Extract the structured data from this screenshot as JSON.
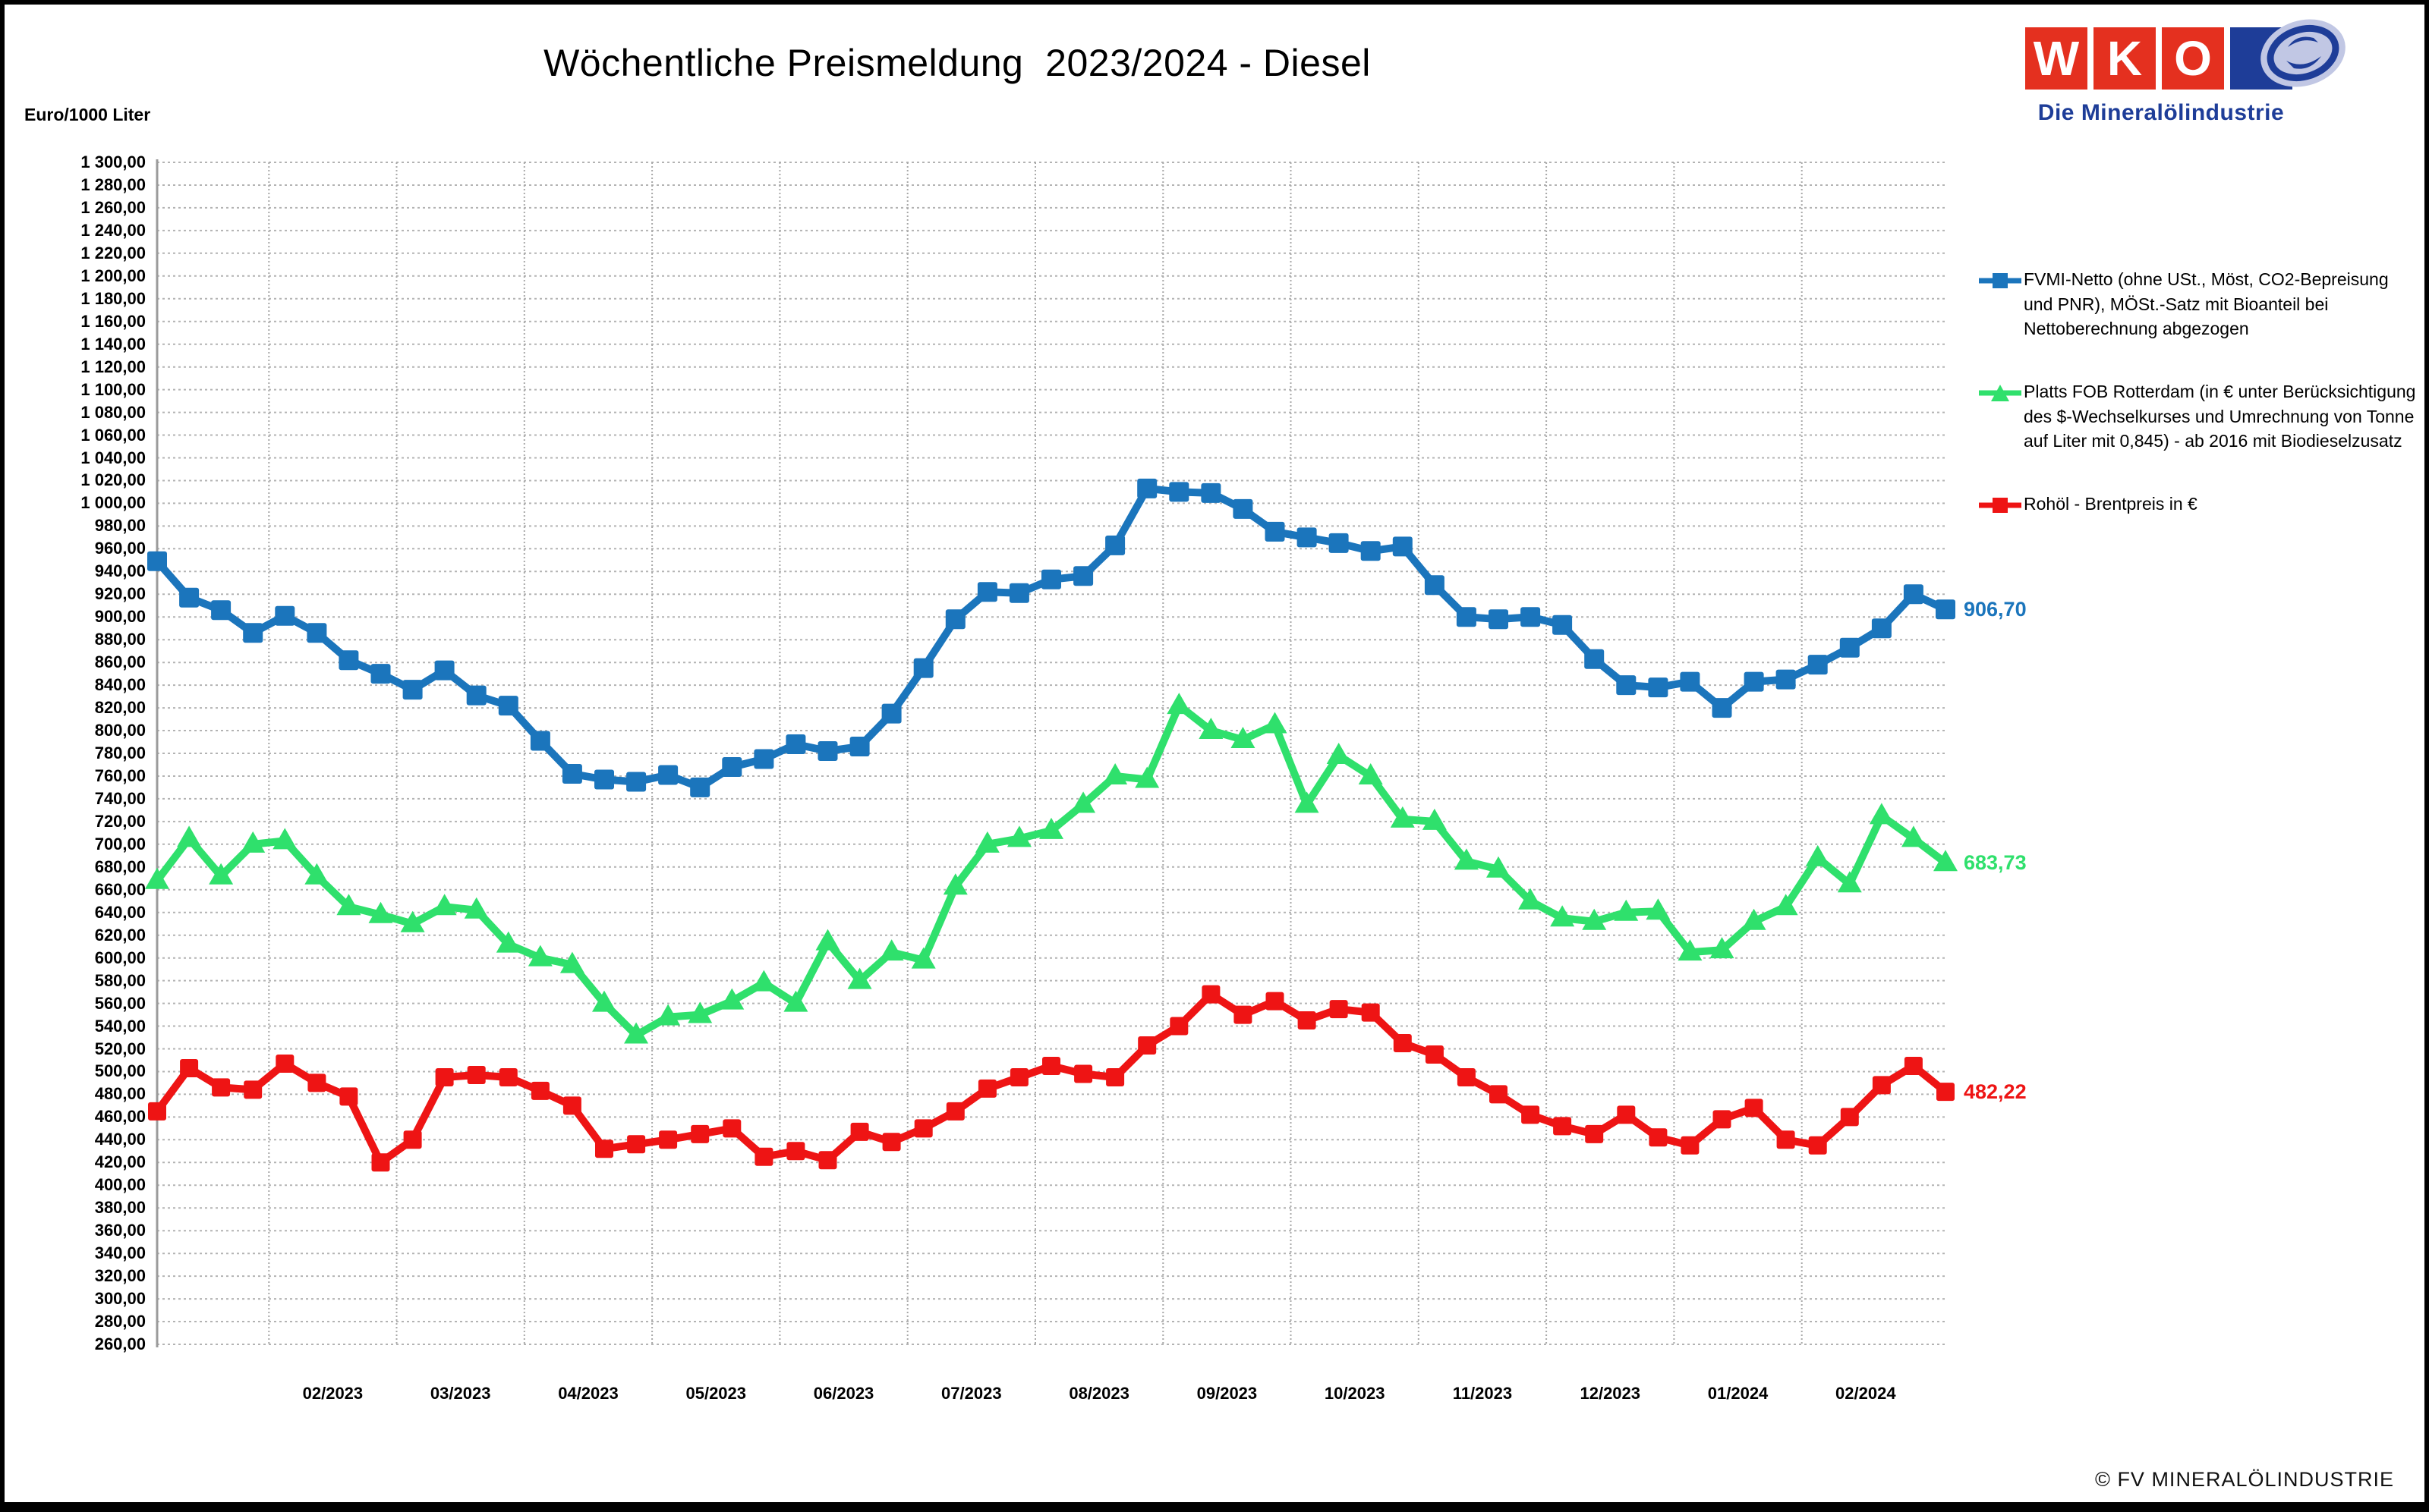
{
  "page": {
    "title": "Wöchentliche Preismeldung  2023/2024 - Diesel",
    "y_axis_unit_label": "Euro/1000 Liter",
    "footer": "© FV MINERALÖLINDUSTRIE"
  },
  "logo": {
    "letters": [
      "W",
      "K",
      "O"
    ],
    "subtitle": "Die Mineralölindustrie",
    "square_red": "#e4301f",
    "square_blue": "#1e3d98",
    "swoosh_lavender": "#c1c7e4"
  },
  "chart_data": {
    "type": "line",
    "title": "Wöchentliche Preismeldung  2023/2024 - Diesel",
    "ylabel": "Euro/1000 Liter",
    "ylim": [
      260,
      1300
    ],
    "y_tick_step": 20,
    "y_tick_format": "thousands space, comma decimals, two places",
    "grid": "dotted horizontal every 20, dotted vertical at month boundaries",
    "legend_position": "right",
    "x_axis": {
      "labels": [
        "02/2023",
        "03/2023",
        "04/2023",
        "05/2023",
        "06/2023",
        "07/2023",
        "08/2023",
        "09/2023",
        "10/2023",
        "11/2023",
        "12/2023",
        "01/2024",
        "02/2024"
      ]
    },
    "series": [
      {
        "key": "fvmi",
        "legend_label": "FVMI-Netto (ohne USt., Möst, CO2-Bepreisung und PNR), MÖSt.-Satz mit Bioanteil bei Nettoberechnung abgezogen",
        "color": "#1b75bc",
        "marker": "square",
        "end_label": "906,70",
        "values": [
          949,
          917,
          906,
          886,
          901,
          886,
          862,
          850,
          836,
          853,
          831,
          822,
          791,
          762,
          757,
          755,
          761,
          750,
          768,
          775,
          788,
          782,
          786,
          815,
          855,
          898,
          922,
          921,
          933,
          936,
          963,
          1013,
          1010,
          1009,
          995,
          975,
          970,
          965,
          958,
          962,
          928,
          900,
          898,
          900,
          893,
          863,
          840,
          838,
          843,
          820,
          843,
          845,
          858,
          873,
          890,
          920,
          906.7
        ]
      },
      {
        "key": "platts",
        "legend_label": "Platts FOB Rotterdam (in € unter Berücksichtigung des $-Wechselkurses und Umrechnung von Tonne auf Liter mit 0,845) - ab 2016 mit Biodieselzusatz",
        "color": "#2fe06c",
        "marker": "triangle",
        "end_label": "683,73",
        "values": [
          668,
          705,
          672,
          700,
          703,
          672,
          645,
          638,
          630,
          645,
          642,
          612,
          600,
          594,
          560,
          532,
          548,
          550,
          562,
          578,
          560,
          614,
          580,
          605,
          598,
          663,
          700,
          705,
          712,
          735,
          760,
          757,
          822,
          800,
          792,
          805,
          735,
          778,
          760,
          722,
          720,
          685,
          678,
          650,
          635,
          632,
          640,
          641,
          605,
          607,
          632,
          645,
          688,
          665,
          725,
          705,
          683.73
        ]
      },
      {
        "key": "brent",
        "legend_label": "Rohöl - Brentpreis in €",
        "color": "#ee1414",
        "marker": "square",
        "end_label": "482,22",
        "values": [
          465,
          503,
          486,
          484,
          507,
          490,
          478,
          420,
          440,
          495,
          497,
          495,
          483,
          470,
          432,
          436,
          440,
          445,
          450,
          425,
          430,
          422,
          447,
          438,
          450,
          465,
          485,
          495,
          505,
          498,
          495,
          523,
          540,
          568,
          550,
          562,
          545,
          555,
          552,
          525,
          515,
          495,
          480,
          462,
          452,
          445,
          462,
          442,
          435,
          458,
          468,
          440,
          435,
          460,
          488,
          505,
          482.22
        ]
      }
    ]
  }
}
